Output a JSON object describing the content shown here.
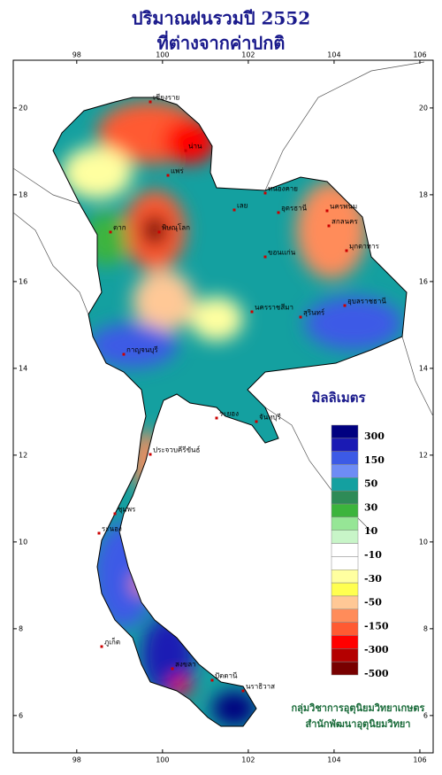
{
  "header": {
    "title_line1": "ปริมาณฝนรวมปี  2552",
    "title_line2": "ที่ต่างจากค่าปกติ"
  },
  "map": {
    "xlim": [
      96.52,
      106.31
    ],
    "ylim": [
      5.14,
      21.1
    ],
    "lon_ticks": [
      98,
      100,
      102,
      104,
      106
    ],
    "lat_ticks": [
      6,
      8,
      10,
      12,
      14,
      16,
      18,
      20
    ],
    "stations": [
      "เชียงราย",
      "น่าน",
      "แพร่",
      "เลย",
      "หนองคาย",
      "อุดรธานี",
      "นครพนม",
      "สกลนคร",
      "มุกดาหาร",
      "ขอนแก่น",
      "อุบลราชธานี",
      "สุรินทร์",
      "นครราชสีมา",
      "ตาก",
      "พิษณุโลก",
      "กาญจนบุรี",
      "ระยอง",
      "จันทบุรี",
      "ประจวบคีรีขันธ์",
      "ชุมพร",
      "ระนอง",
      "ภูเก็ต",
      "สงขลา",
      "ปัตตานี",
      "นราธิวาส"
    ]
  },
  "legend": {
    "title": "มิลลิเมตร",
    "colors": [
      "#000080",
      "#1a1ab4",
      "#3c5ae6",
      "#6e8cf5",
      "#14a0a0",
      "#2e8b57",
      "#3cb43c",
      "#96e696",
      "#c8f5c8",
      "#ffffff",
      "#ffffff",
      "#ffffa0",
      "#ffff50",
      "#ffc896",
      "#ff8c5a",
      "#ff5a32",
      "#ff0000",
      "#b40000",
      "#780000"
    ],
    "labels": [
      "300",
      "150",
      "50",
      "30",
      "10",
      "-10",
      "-30",
      "-50",
      "-150",
      "-300",
      "-500"
    ]
  },
  "credits": {
    "line1": "กลุ่มวิชาการอุตุนิยมวิทยาเกษตร",
    "line2": "สำนักพัฒนาอุตุนิยมวิทยา"
  }
}
